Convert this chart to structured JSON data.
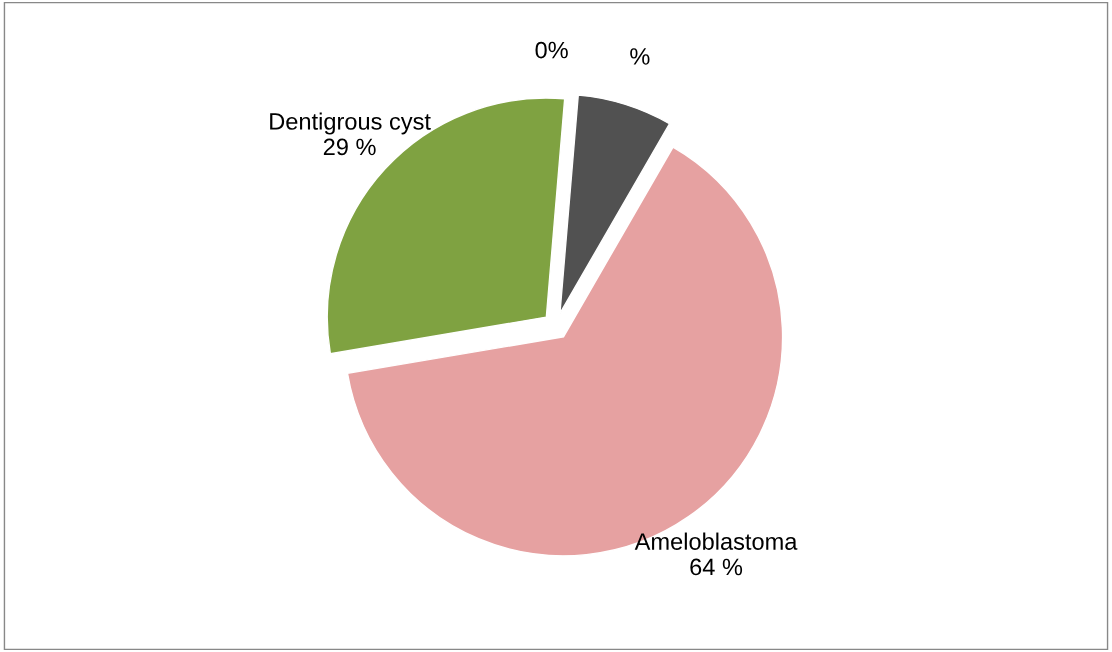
{
  "chart_data": {
    "type": "pie",
    "categories": [
      "Ameloblastoma",
      "Dentigrous cyst",
      null
    ],
    "values": [
      64,
      29,
      7
    ],
    "value_labels": [
      "64 %",
      "29 %",
      "%"
    ],
    "colors": [
      "#e6a1a1",
      "#7fa241",
      "#515151"
    ],
    "annotations": [
      "0%"
    ]
  }
}
